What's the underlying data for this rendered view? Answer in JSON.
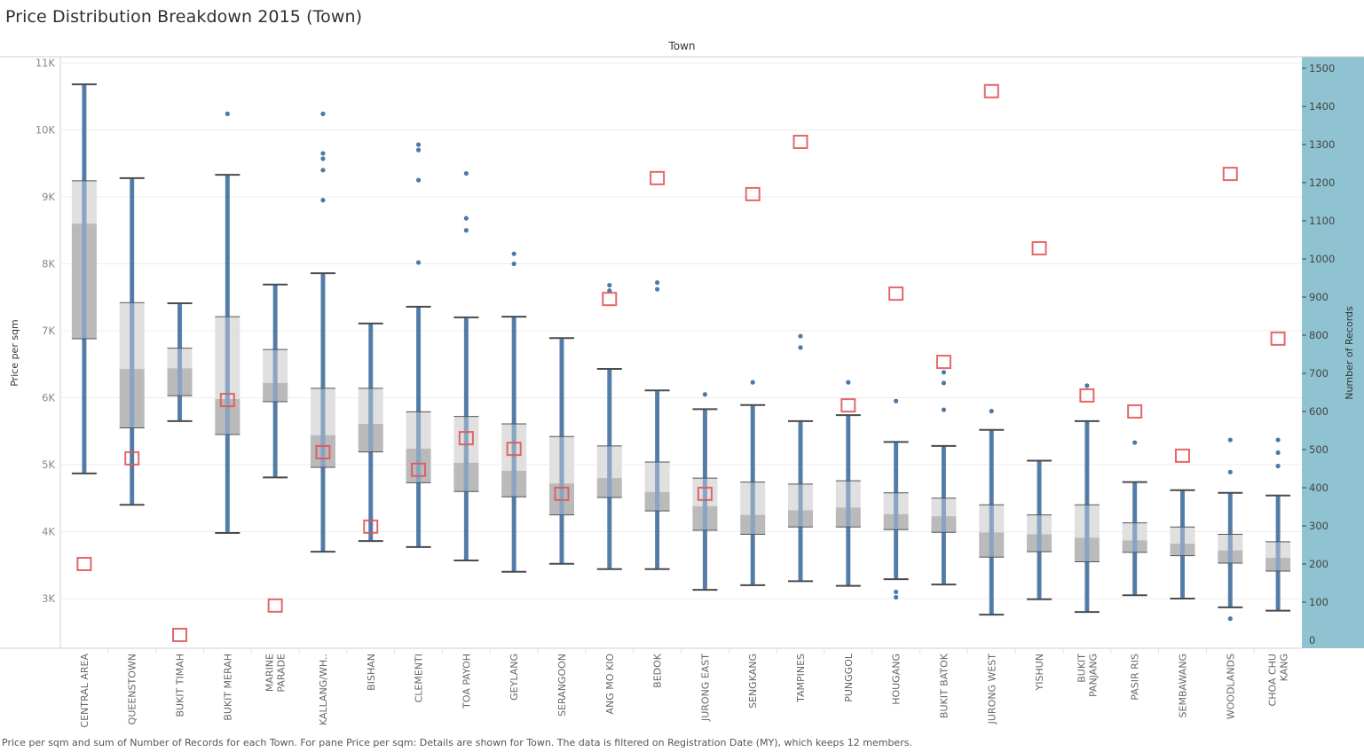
{
  "title": "Price Distribution Breakdown 2015 (Town)",
  "column_header": "Town",
  "footnote": "Price per sqm and sum of Number of Records for each Town.  For pane Price per sqm:  Details are shown for Town. The data is filtered on Registration Date (MY), which keeps 12 members.",
  "colors": {
    "dots": "#4e79a7",
    "box_upper": "#e0e0e0",
    "box_lower": "#bababa",
    "whisker": "#4a4a4a",
    "records_marker": "#e15759",
    "right_axis_bg": "#8fc3d1",
    "gridline": "#ececec"
  },
  "chart_data": {
    "type": "box-plot-with-dual-axis",
    "title": "Price Distribution Breakdown 2015 (Town)",
    "xlabel": "Town",
    "ylabel": "Price per sqm",
    "y2label": "Number of Records",
    "ylim": [
      2300,
      11000
    ],
    "y2lim": [
      0,
      1550
    ],
    "yticks": [
      3000,
      4000,
      5000,
      6000,
      7000,
      8000,
      9000,
      10000,
      11000
    ],
    "ytick_labels": [
      "3K",
      "4K",
      "5K",
      "6K",
      "7K",
      "8K",
      "9K",
      "10K",
      "11K"
    ],
    "y2ticks": [
      0,
      100,
      200,
      300,
      400,
      500,
      600,
      700,
      800,
      900,
      1000,
      1100,
      1200,
      1300,
      1400,
      1500
    ],
    "y2tick_labels": [
      "0",
      "100",
      "200",
      "300",
      "400",
      "500",
      "600",
      "700",
      "800",
      "900",
      "1000",
      "1100",
      "1200",
      "1300",
      "1400",
      "1500"
    ],
    "grid": true,
    "categories": [
      "CENTRAL AREA",
      "QUEENSTOWN",
      "BUKIT TIMAH",
      "BUKIT MERAH",
      "MARINE PARADE",
      "KALLANG/WH..",
      "BISHAN",
      "CLEMENTI",
      "TOA PAYOH",
      "GEYLANG",
      "SERANGOON",
      "ANG MO KIO",
      "BEDOK",
      "JURONG EAST",
      "SENGKANG",
      "TAMPINES",
      "PUNGGOL",
      "HOUGANG",
      "BUKIT BATOK",
      "JURONG WEST",
      "YISHUN",
      "BUKIT PANJANG",
      "PASIR RIS",
      "SEMBAWANG",
      "WOODLANDS",
      "CHOA CHU KANG"
    ],
    "category_label_lines": [
      [
        "CENTRAL AREA"
      ],
      [
        "QUEENSTOWN"
      ],
      [
        "BUKIT TIMAH"
      ],
      [
        "BUKIT MERAH"
      ],
      [
        "MARINE",
        "PARADE"
      ],
      [
        "KALLANG/WH.."
      ],
      [
        "BISHAN"
      ],
      [
        "CLEMENTI"
      ],
      [
        "TOA PAYOH"
      ],
      [
        "GEYLANG"
      ],
      [
        "SERANGOON"
      ],
      [
        "ANG MO KIO"
      ],
      [
        "BEDOK"
      ],
      [
        "JURONG EAST"
      ],
      [
        "SENGKANG"
      ],
      [
        "TAMPINES"
      ],
      [
        "PUNGGOL"
      ],
      [
        "HOUGANG"
      ],
      [
        "BUKIT BATOK"
      ],
      [
        "JURONG WEST"
      ],
      [
        "YISHUN"
      ],
      [
        "BUKIT",
        "PANJANG"
      ],
      [
        "PASIR RIS"
      ],
      [
        "SEMBAWANG"
      ],
      [
        "WOODLANDS"
      ],
      [
        "CHOA CHU",
        "KANG"
      ]
    ],
    "series": [
      {
        "name": "Price per sqm",
        "type": "box",
        "whisker_low": [
          4870,
          4400,
          5650,
          3980,
          4810,
          3700,
          3860,
          3770,
          3570,
          3400,
          3520,
          3440,
          3440,
          3130,
          3200,
          3260,
          3190,
          3290,
          3210,
          2760,
          2990,
          2800,
          3050,
          3000,
          2870,
          2820
        ],
        "q1": [
          6880,
          5550,
          6030,
          5450,
          5940,
          4960,
          5190,
          4730,
          4600,
          4520,
          4250,
          4510,
          4310,
          4020,
          3960,
          4070,
          4070,
          4030,
          3990,
          3620,
          3700,
          3550,
          3690,
          3640,
          3530,
          3410
        ],
        "median": [
          8600,
          6430,
          6440,
          5980,
          6220,
          5440,
          5610,
          5240,
          5030,
          4910,
          4720,
          4800,
          4590,
          4380,
          4250,
          4320,
          4360,
          4260,
          4230,
          3990,
          3960,
          3910,
          3870,
          3820,
          3720,
          3610
        ],
        "q3": [
          9240,
          7420,
          6740,
          7210,
          6720,
          6140,
          6140,
          5790,
          5720,
          5610,
          5420,
          5280,
          5040,
          4800,
          4740,
          4710,
          4760,
          4580,
          4500,
          4400,
          4250,
          4400,
          4130,
          4070,
          3960,
          3850
        ],
        "whisker_high": [
          10680,
          9280,
          7410,
          9330,
          7690,
          7860,
          7110,
          7360,
          7200,
          7210,
          6890,
          6430,
          6110,
          5830,
          5890,
          5650,
          5740,
          5340,
          5280,
          5520,
          5060,
          5650,
          4740,
          4620,
          4580,
          4540
        ],
        "outliers_high": [
          [],
          [],
          [],
          [
            10240
          ],
          [],
          [
            10240,
            9650,
            9570,
            9400,
            8950
          ],
          [],
          [
            9780,
            9700,
            9250,
            8020
          ],
          [
            9350,
            8680,
            8500
          ],
          [
            8150,
            8000
          ],
          [],
          [
            7680,
            7600
          ],
          [
            7720,
            7620
          ],
          [
            6050
          ],
          [
            6230
          ],
          [
            6920,
            6750
          ],
          [
            6230
          ],
          [
            5950
          ],
          [
            6380,
            6220,
            5820
          ],
          [
            5800
          ],
          [],
          [
            6180
          ],
          [
            5330
          ],
          [],
          [
            5370,
            4890
          ],
          [
            5370,
            5180,
            4980
          ]
        ],
        "outliers_low": [
          [],
          [],
          [],
          [],
          [],
          [],
          [],
          [],
          [],
          [],
          [],
          [],
          [],
          [],
          [],
          [],
          [],
          [
            3100,
            3020
          ],
          [],
          [],
          [],
          [],
          [],
          [],
          [
            2700
          ],
          []
        ]
      },
      {
        "name": "Number of Records",
        "type": "square-marker",
        "axis": "right",
        "values": [
          200,
          477,
          14,
          630,
          91,
          493,
          298,
          447,
          530,
          502,
          384,
          895,
          1212,
          384,
          1170,
          1307,
          616,
          909,
          730,
          1440,
          1028,
          642,
          600,
          484,
          1223,
          791
        ]
      }
    ]
  }
}
